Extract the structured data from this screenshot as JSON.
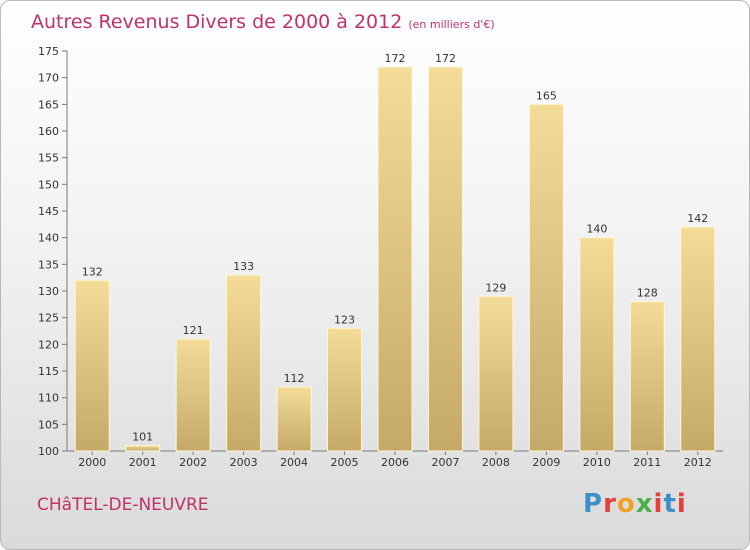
{
  "header": {
    "title": "Autres Revenus Divers de 2000 à 2012",
    "unit": "(en milliers d'€)"
  },
  "footer": {
    "town": "CHâTEL-DE-NEUVRE",
    "logo_letters": [
      "P",
      "r",
      "o",
      "x",
      "i",
      "t",
      "i"
    ]
  },
  "colors": {
    "title": "#c0306a",
    "bar_top": "#f4dc98",
    "bar_bottom": "#c4aa66",
    "logo": [
      "#3d8fcb",
      "#e2403a",
      "#f2a128",
      "#4dae4a",
      "#e2403a",
      "#3d8fcb",
      "#e2403a"
    ]
  },
  "chart_data": {
    "type": "bar",
    "title": "Autres Revenus Divers de 2000 à 2012",
    "xlabel": "",
    "ylabel": "",
    "categories": [
      "2000",
      "2001",
      "2002",
      "2003",
      "2004",
      "2005",
      "2006",
      "2007",
      "2008",
      "2009",
      "2010",
      "2011",
      "2012"
    ],
    "values": [
      132,
      101,
      121,
      133,
      112,
      123,
      172,
      172,
      129,
      165,
      140,
      128,
      142
    ],
    "ylim": [
      100,
      175
    ],
    "yticks": [
      100,
      105,
      110,
      115,
      120,
      125,
      130,
      135,
      140,
      145,
      150,
      155,
      160,
      165,
      170,
      175
    ],
    "grid": false,
    "data_labels": true
  }
}
